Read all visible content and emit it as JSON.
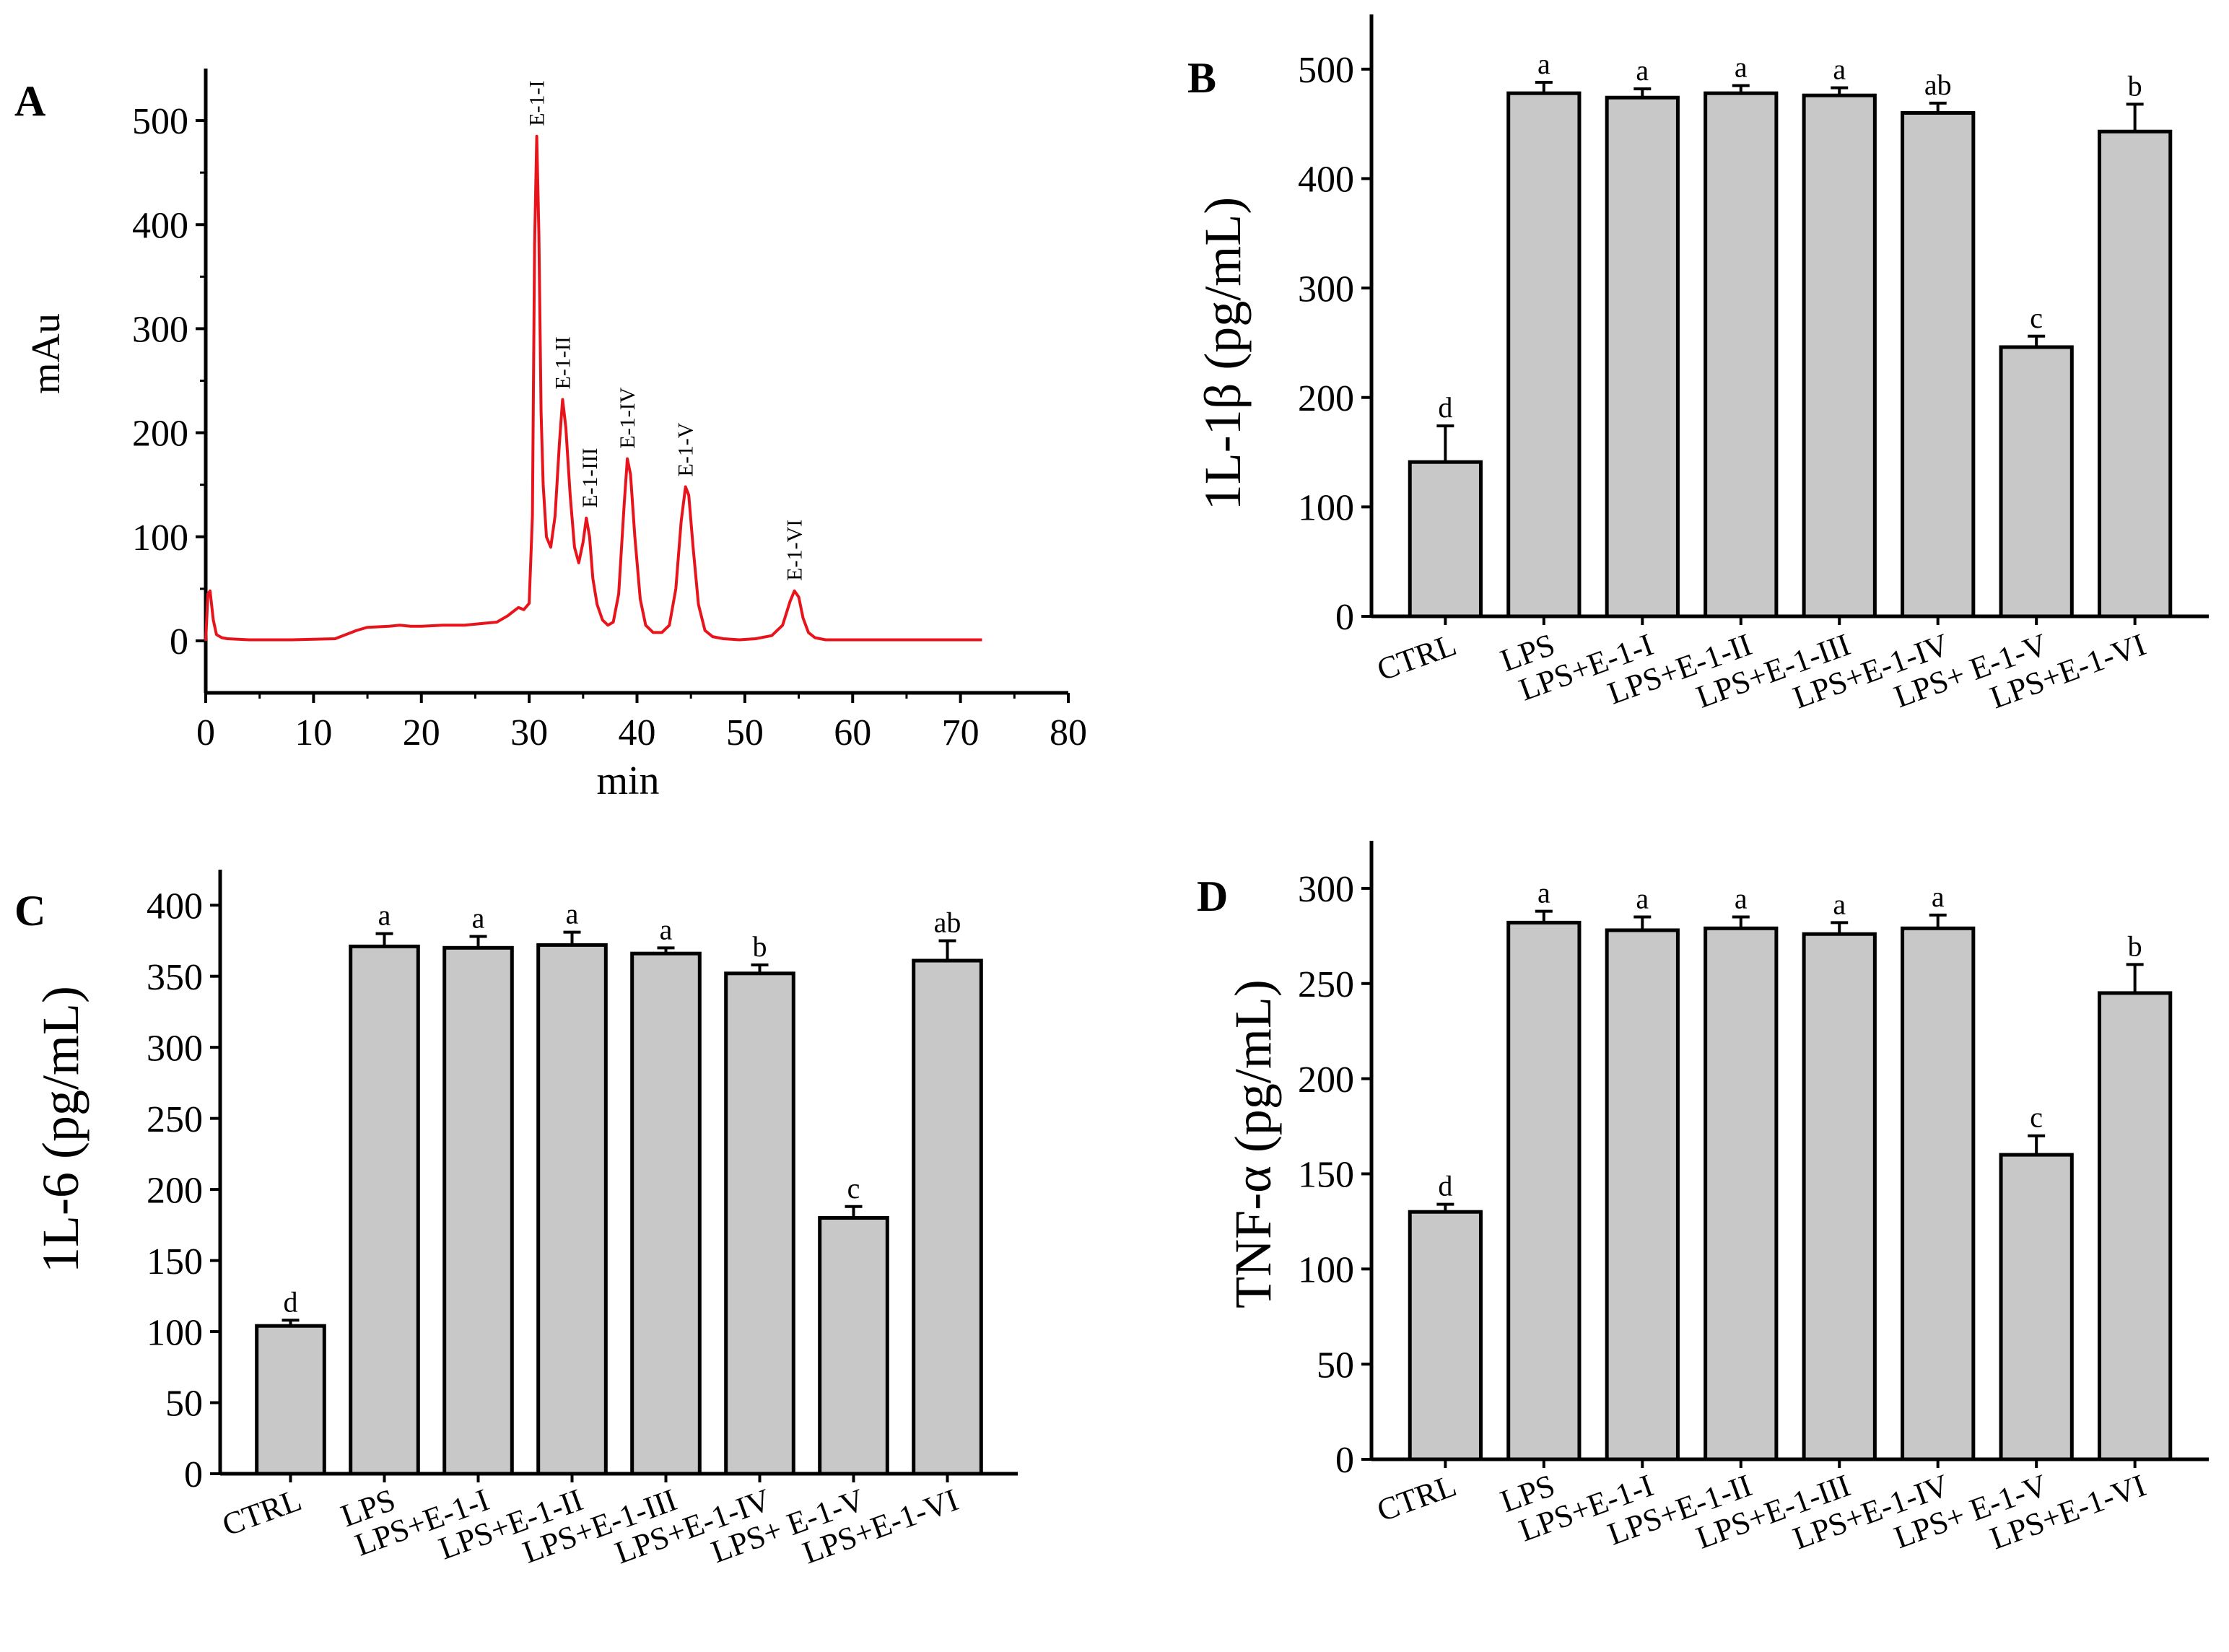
{
  "figure": {
    "panel_labels": [
      "A",
      "B",
      "C",
      "D"
    ]
  },
  "chart_data": [
    {
      "panel": "A",
      "type": "line",
      "title": "",
      "xlabel": "min",
      "ylabel": "mAu",
      "xlim": [
        0,
        80
      ],
      "ylim": [
        -50,
        550
      ],
      "xticks": [
        0,
        10,
        20,
        30,
        40,
        50,
        60,
        70,
        80
      ],
      "yticks": [
        0,
        100,
        200,
        300,
        400,
        500
      ],
      "color": "#e8141c",
      "series": [
        {
          "name": "chromatogram",
          "x": [
            0,
            0.2,
            0.4,
            0.7,
            1.0,
            1.5,
            2,
            4,
            8,
            12,
            13,
            14,
            15,
            17,
            18,
            19,
            20,
            22,
            24,
            26,
            27,
            28,
            28.5,
            29,
            29.5,
            30.0,
            30.3,
            30.5,
            30.7,
            30.9,
            31.1,
            31.3,
            31.6,
            32.0,
            32.4,
            32.8,
            33.1,
            33.4,
            33.8,
            34.2,
            34.6,
            35.0,
            35.3,
            35.6,
            35.9,
            36.3,
            36.8,
            37.3,
            37.8,
            38.3,
            38.8,
            39.1,
            39.4,
            39.8,
            40.3,
            40.8,
            41.5,
            42.3,
            43.0,
            43.6,
            44.1,
            44.5,
            44.8,
            45.2,
            45.7,
            46.3,
            47.0,
            48.0,
            49.5,
            51,
            52.5,
            53.5,
            54.2,
            54.6,
            55.0,
            55.4,
            55.9,
            56.5,
            57.5,
            59,
            62,
            66,
            70,
            72
          ],
          "y": [
            0,
            45,
            48,
            20,
            6,
            3,
            2,
            1,
            1,
            2,
            6,
            10,
            13,
            14,
            15,
            14,
            14,
            15,
            15,
            17,
            18,
            24,
            28,
            32,
            30,
            36,
            120,
            380,
            485,
            390,
            220,
            150,
            100,
            90,
            120,
            190,
            232,
            205,
            140,
            90,
            75,
            95,
            118,
            100,
            60,
            35,
            20,
            15,
            18,
            45,
            130,
            175,
            160,
            100,
            40,
            15,
            8,
            8,
            15,
            50,
            115,
            148,
            140,
            90,
            35,
            10,
            4,
            2,
            1,
            2,
            5,
            15,
            38,
            48,
            42,
            22,
            8,
            3,
            1,
            1,
            1,
            1,
            1,
            1
          ]
        }
      ],
      "annotations": [
        {
          "text": "E-1-I",
          "x": 30.7,
          "y": 485
        },
        {
          "text": "E-1-II",
          "x": 33.1,
          "y": 232
        },
        {
          "text": "E-1-III",
          "x": 35.6,
          "y": 118
        },
        {
          "text": "E-1-IV",
          "x": 39.1,
          "y": 175
        },
        {
          "text": "E-1-V",
          "x": 44.5,
          "y": 148
        },
        {
          "text": "E-1-VI",
          "x": 54.6,
          "y": 48
        }
      ]
    },
    {
      "panel": "B",
      "type": "bar",
      "title": "",
      "xlabel": "",
      "ylabel": "1L-1β (pg/mL)",
      "ylim": [
        0,
        550
      ],
      "yticks": [
        0,
        100,
        200,
        300,
        400,
        500
      ],
      "bar_color": "#c8c8c8",
      "categories": [
        "CTRL",
        "LPS",
        "LPS+E-1-I",
        "LPS+E-1-II",
        "LPS+E-1-III",
        "LPS+E-1-IV",
        "LPS+ E-1-V",
        "LPS+E-1-VI"
      ],
      "values": [
        141,
        478,
        474,
        478,
        476,
        460,
        246,
        443
      ],
      "errors": [
        33,
        10,
        8,
        7,
        7,
        9,
        10,
        25
      ],
      "letters": [
        "d",
        "a",
        "a",
        "a",
        "a",
        "ab",
        "c",
        "b"
      ]
    },
    {
      "panel": "C",
      "type": "bar",
      "title": "",
      "xlabel": "",
      "ylabel": "1L-6 (pg/mL)",
      "ylim": [
        0,
        425
      ],
      "yticks": [
        0,
        50,
        100,
        150,
        200,
        250,
        300,
        350,
        400
      ],
      "bar_color": "#c8c8c8",
      "categories": [
        "CTRL",
        "LPS",
        "LPS+E-1-I",
        "LPS+E-1-II",
        "LPS+E-1-III",
        "LPS+E-1-IV",
        "LPS+ E-1-V",
        "LPS+E-1-VI"
      ],
      "values": [
        104,
        371,
        370,
        372,
        366,
        352,
        180,
        361
      ],
      "errors": [
        4,
        9,
        8,
        9,
        4,
        6,
        8,
        14
      ],
      "letters": [
        "d",
        "a",
        "a",
        "a",
        "a",
        "b",
        "c",
        "ab"
      ]
    },
    {
      "panel": "D",
      "type": "bar",
      "title": "",
      "xlabel": "",
      "ylabel": "TNF-α (pg/mL)",
      "ylim": [
        0,
        325
      ],
      "yticks": [
        0,
        50,
        100,
        150,
        200,
        250,
        300
      ],
      "bar_color": "#c8c8c8",
      "categories": [
        "CTRL",
        "LPS",
        "LPS+E-1-I",
        "LPS+E-1-II",
        "LPS+E-1-III",
        "LPS+E-1-IV",
        "LPS+ E-1-V",
        "LPS+E-1-VI"
      ],
      "values": [
        130,
        282,
        278,
        279,
        276,
        279,
        160,
        245
      ],
      "errors": [
        4,
        6,
        7,
        6,
        6,
        7,
        10,
        15
      ],
      "letters": [
        "d",
        "a",
        "a",
        "a",
        "a",
        "a",
        "c",
        "b"
      ]
    }
  ]
}
